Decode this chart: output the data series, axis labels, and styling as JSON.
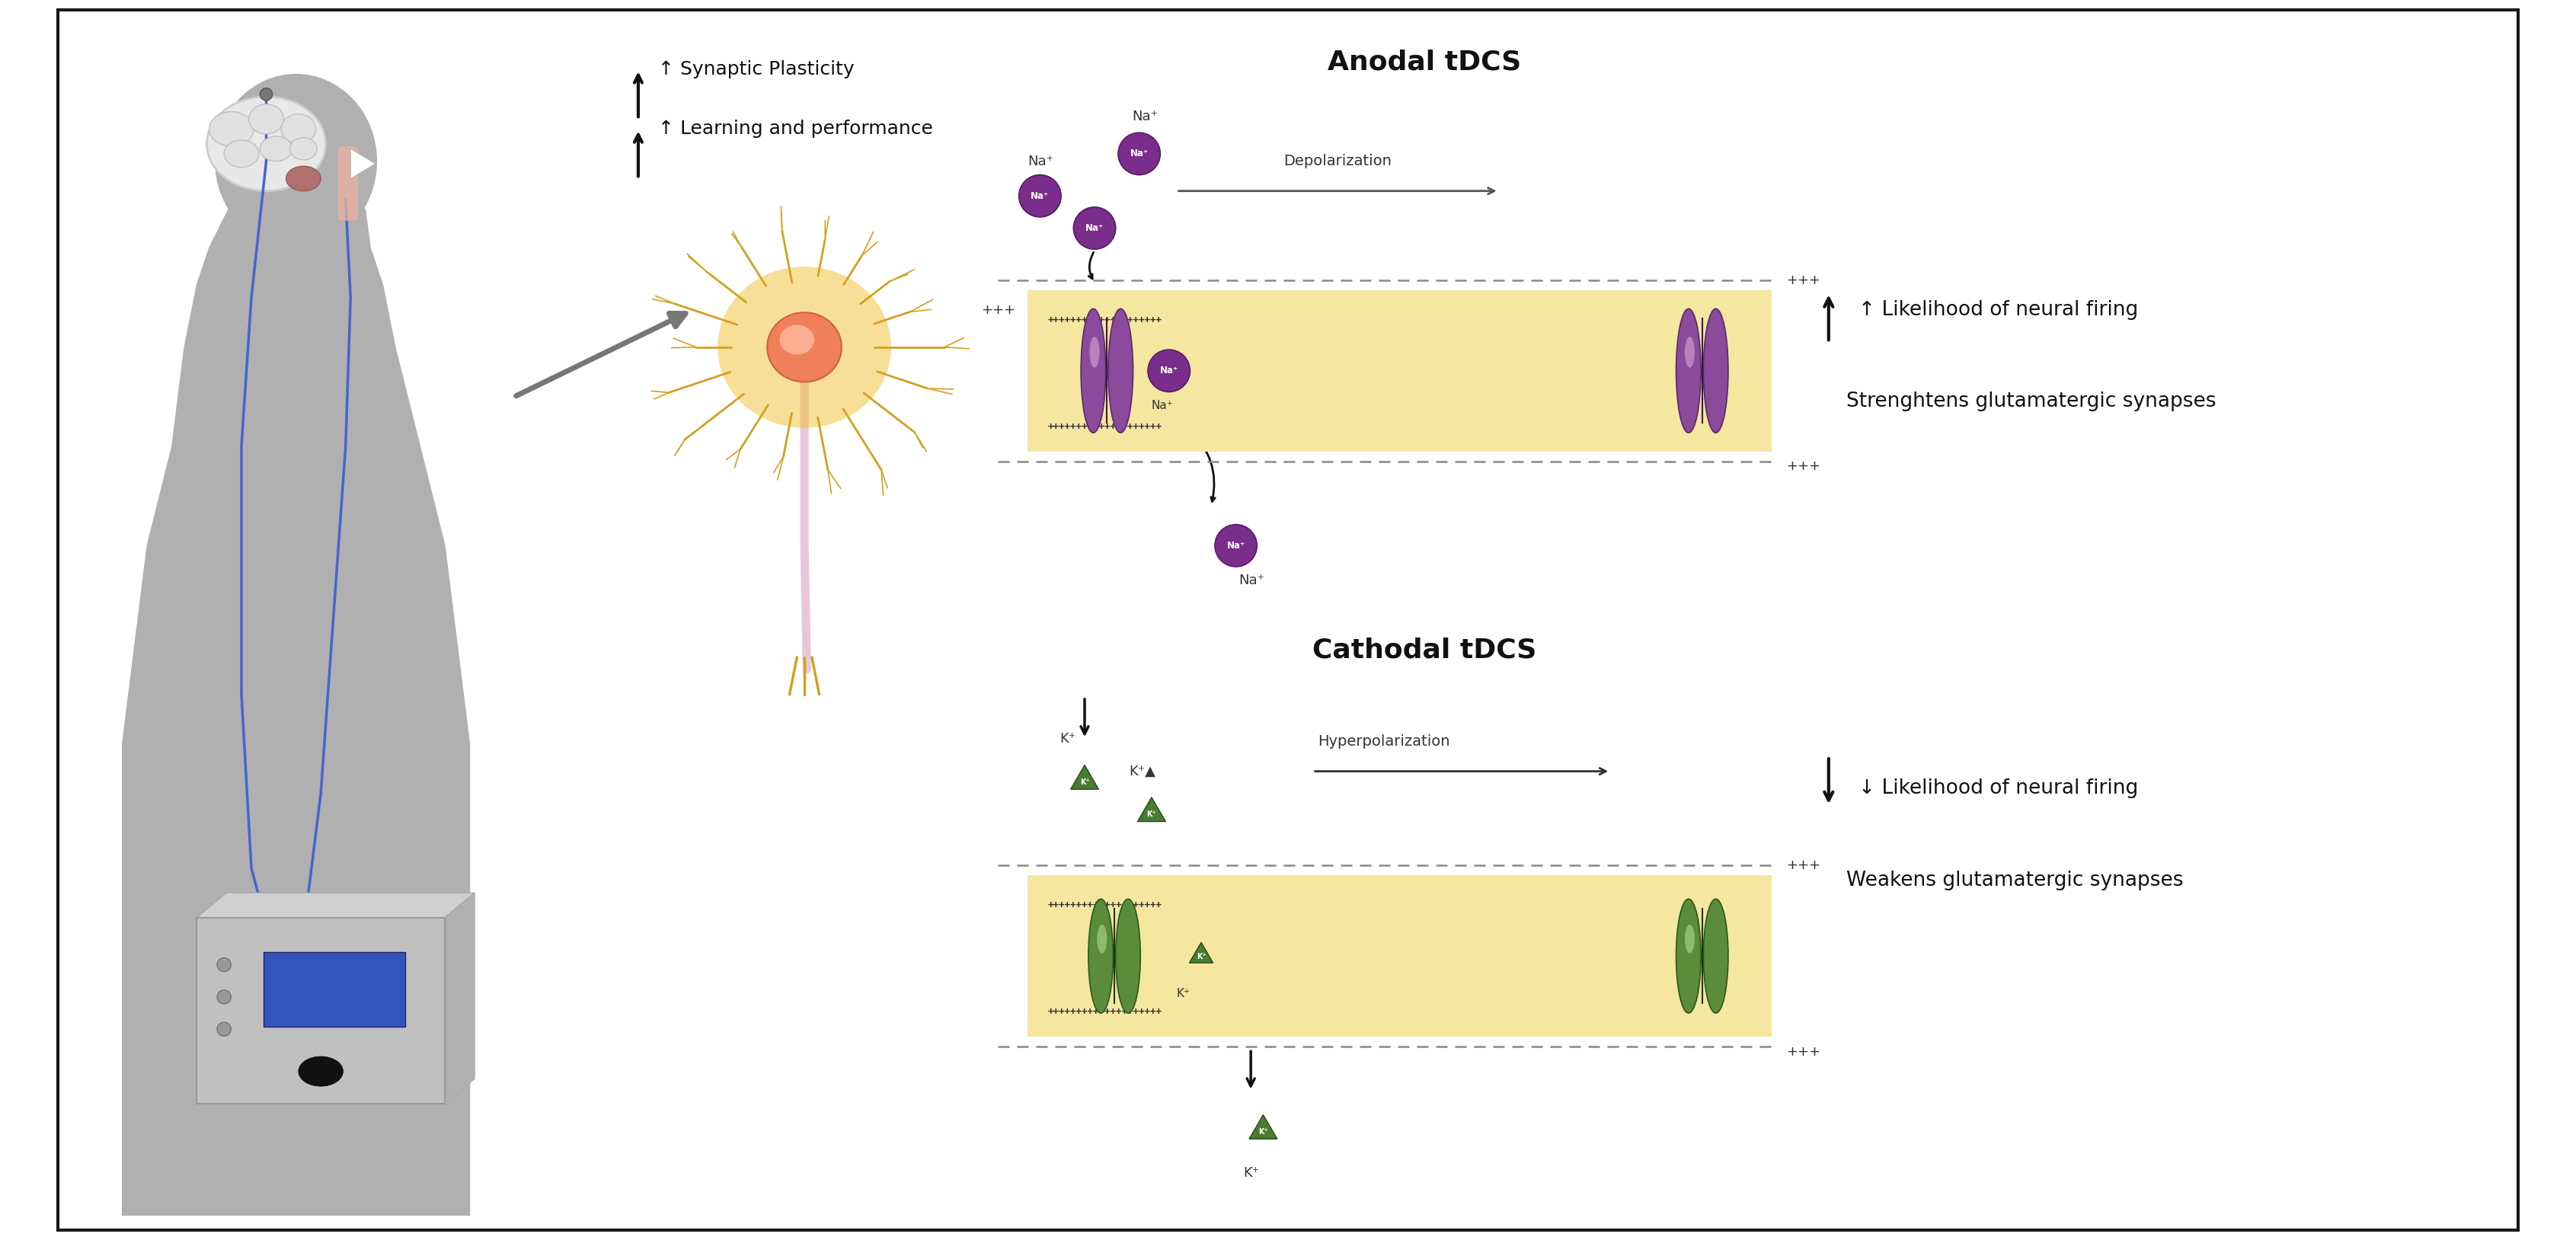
{
  "bg_color": "#ffffff",
  "border_color": "#1a1a1a",
  "figure_width": 33.82,
  "figure_height": 16.28,
  "anodal_title": "Anodal tDCS",
  "cathodal_title": "Cathodal tDCS",
  "anodal_right_text1": "↑ Likelihood of neural firing",
  "anodal_right_text2": "Strenghtens glutamatergic synapses",
  "cathodal_right_text1": "↓ Likelihood of neural firing",
  "cathodal_right_text2": "Weakens glutamatergic synapses",
  "top_text1": "↑ Synaptic Plasticity",
  "top_text2": "↑ Learning and performance",
  "membrane_color": "#f5e6a0",
  "body_color": "#b0b0b0",
  "na_circle_color": "#7b2d8b",
  "k_triangle_color": "#4a7c2f",
  "wire_color": "#4466cc",
  "device_color": "#c0c0c0",
  "device_screen_color": "#3355bb",
  "neuron_dendrite_color": "#d4a020",
  "neuron_body_color": "#e87060",
  "neuron_axon_color": "#e0c0d0",
  "channel_anodal_color": "#7b3b8b",
  "channel_cathodal_color": "#4a7c2f"
}
